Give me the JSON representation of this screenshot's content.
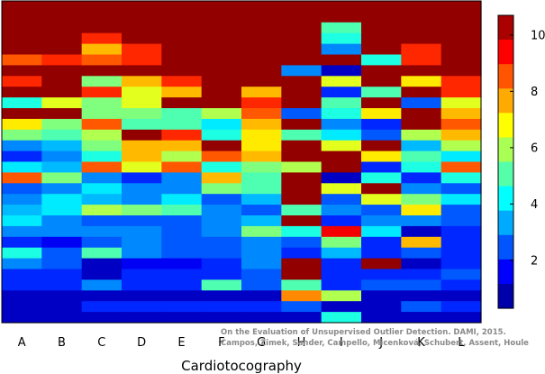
{
  "chart_data": {
    "type": "heatmap",
    "xlabel": "Cardiotocography",
    "credit_line1": "On the Evaluation of Unsupervised Outlier Detection. DAMI, 2015.",
    "credit_line2": "Campos, Zimek, Sander, Campello, Micenková, Schubert, Assent, Houle",
    "columns": [
      "A",
      "B",
      "C",
      "D",
      "E",
      "F",
      "G",
      "H",
      "I",
      "J",
      "K",
      "L"
    ],
    "colorbar": {
      "min": 0.3,
      "max": 10.7,
      "ticks": [
        2,
        4,
        6,
        8,
        10
      ],
      "colormap": "jet"
    },
    "rank_levels": 30,
    "values": [
      [
        10.5,
        10.5,
        10.5,
        10.5,
        10.5,
        10.5,
        10.5,
        10.5,
        10.5,
        10.5,
        10.5,
        10.5
      ],
      [
        10.5,
        10.5,
        10.5,
        10.5,
        10.5,
        10.5,
        10.5,
        10.5,
        10.5,
        10.5,
        10.5,
        10.5
      ],
      [
        10.5,
        10.5,
        10.5,
        10.5,
        10.5,
        10.5,
        10.5,
        10.5,
        5.0,
        10.5,
        10.5,
        10.5
      ],
      [
        10.5,
        10.5,
        9.0,
        10.5,
        10.5,
        10.5,
        10.5,
        10.5,
        4.5,
        10.5,
        10.5,
        10.5
      ],
      [
        10.5,
        10.5,
        7.5,
        9.0,
        10.5,
        10.5,
        10.5,
        10.5,
        3.0,
        10.5,
        9.0,
        10.5
      ],
      [
        8.5,
        9.0,
        8.5,
        9.0,
        10.5,
        10.5,
        10.5,
        10.5,
        10.5,
        4.5,
        9.0,
        10.5
      ],
      [
        10.5,
        10.5,
        10.5,
        10.5,
        10.5,
        10.5,
        10.5,
        3.0,
        1.0,
        10.5,
        10.5,
        10.5
      ],
      [
        9.0,
        10.5,
        5.5,
        7.5,
        9.0,
        10.5,
        10.5,
        10.5,
        6.5,
        10.5,
        7.0,
        9.0
      ],
      [
        10.5,
        10.5,
        9.0,
        6.5,
        7.5,
        10.5,
        7.5,
        10.5,
        2.0,
        5.0,
        10.5,
        9.0
      ],
      [
        4.5,
        6.5,
        5.5,
        6.5,
        10.5,
        10.5,
        9.0,
        10.5,
        5.0,
        10.5,
        2.5,
        6.5
      ],
      [
        10.5,
        10.5,
        5.5,
        5.5,
        5.0,
        6.0,
        8.5,
        2.5,
        4.5,
        7.0,
        10.5,
        7.5
      ],
      [
        7.0,
        5.5,
        8.5,
        5.0,
        5.0,
        4.0,
        7.5,
        10.5,
        3.0,
        2.0,
        10.5,
        8.5
      ],
      [
        5.5,
        5.0,
        6.0,
        10.5,
        9.0,
        4.5,
        7.0,
        5.0,
        4.0,
        2.5,
        6.0,
        7.5
      ],
      [
        3.0,
        3.5,
        5.5,
        7.5,
        7.5,
        10.5,
        7.0,
        10.5,
        6.5,
        10.5,
        3.5,
        6.0
      ],
      [
        2.0,
        3.0,
        4.5,
        7.5,
        6.0,
        8.5,
        7.5,
        10.5,
        10.5,
        7.0,
        5.0,
        4.0
      ],
      [
        4.0,
        3.5,
        8.5,
        6.5,
        8.5,
        4.5,
        5.5,
        6.0,
        10.5,
        2.0,
        4.5,
        8.5
      ],
      [
        8.5,
        5.5,
        3.0,
        2.0,
        3.0,
        7.5,
        5.0,
        10.5,
        1.0,
        4.5,
        2.0,
        4.5
      ],
      [
        2.5,
        3.0,
        4.0,
        3.0,
        3.0,
        5.5,
        5.0,
        10.5,
        6.5,
        10.5,
        3.0,
        2.5
      ],
      [
        3.0,
        4.0,
        3.5,
        3.0,
        4.0,
        2.5,
        3.5,
        10.5,
        2.5,
        6.5,
        5.5,
        4.0
      ],
      [
        3.5,
        4.0,
        6.0,
        5.5,
        5.0,
        3.0,
        2.5,
        5.0,
        3.0,
        2.5,
        7.0,
        2.5
      ],
      [
        4.0,
        3.0,
        2.5,
        2.5,
        2.5,
        3.0,
        3.5,
        10.5,
        2.0,
        3.0,
        3.0,
        2.5
      ],
      [
        3.0,
        3.0,
        3.0,
        3.0,
        2.5,
        3.0,
        5.5,
        4.5,
        9.5,
        4.0,
        1.0,
        2.0
      ],
      [
        2.0,
        1.5,
        2.5,
        3.0,
        2.5,
        2.5,
        3.0,
        2.5,
        5.5,
        2.0,
        7.5,
        2.0
      ],
      [
        4.5,
        2.5,
        5.0,
        3.0,
        2.5,
        2.5,
        3.0,
        2.0,
        3.5,
        2.0,
        2.5,
        2.0
      ],
      [
        3.0,
        2.5,
        1.0,
        1.5,
        1.5,
        2.0,
        3.0,
        10.5,
        2.0,
        10.5,
        1.0,
        2.0
      ],
      [
        2.0,
        2.0,
        1.0,
        2.0,
        2.0,
        2.0,
        2.5,
        10.5,
        2.0,
        2.0,
        2.0,
        2.5
      ],
      [
        2.0,
        2.0,
        3.0,
        2.0,
        2.0,
        5.0,
        2.5,
        5.0,
        2.0,
        2.5,
        2.5,
        2.0
      ],
      [
        1.0,
        1.0,
        1.0,
        1.0,
        1.0,
        1.0,
        1.0,
        8.0,
        6.0,
        1.0,
        1.0,
        1.0
      ],
      [
        1.0,
        1.0,
        2.0,
        2.0,
        2.0,
        2.0,
        2.0,
        2.5,
        1.0,
        1.0,
        2.5,
        2.0
      ],
      [
        1.0,
        1.0,
        1.0,
        1.0,
        1.0,
        1.0,
        1.0,
        1.0,
        4.5,
        1.0,
        1.0,
        1.0
      ]
    ]
  }
}
